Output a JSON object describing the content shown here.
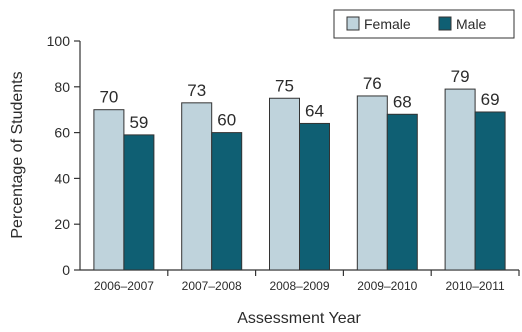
{
  "chart_data": {
    "type": "bar",
    "categories": [
      "2006–2007",
      "2007–2008",
      "2008–2009",
      "2009–2010",
      "2010–2011"
    ],
    "series": [
      {
        "name": "Female",
        "values": [
          70,
          73,
          75,
          76,
          79
        ],
        "color": "#bfd3dc"
      },
      {
        "name": "Male",
        "values": [
          59,
          60,
          64,
          68,
          69
        ],
        "color": "#0f5f73"
      }
    ],
    "title": "",
    "xlabel": "Assessment Year",
    "ylabel": "Percentage of Students",
    "ylim": [
      0,
      100
    ],
    "yticks": [
      0,
      20,
      40,
      60,
      80,
      100
    ],
    "grid": false,
    "legend_position": "top-right"
  }
}
